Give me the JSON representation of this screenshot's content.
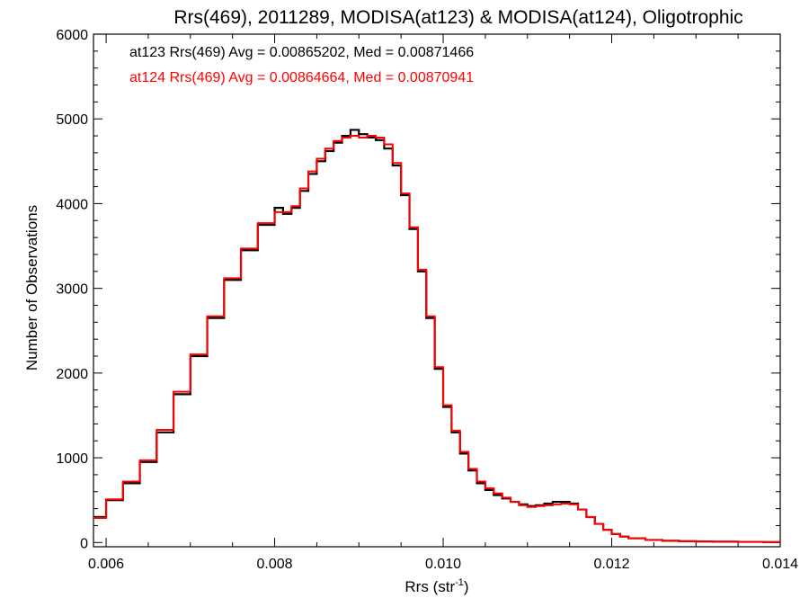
{
  "chart_data": {
    "type": "line",
    "subtype": "step-histogram",
    "title": "Rrs(469), 2011289, MODISA(at123) & MODISA(at124), Oligotrophic",
    "xlabel": "Rrs (str",
    "xlabel_sup": "-1",
    "xlabel_end": ")",
    "ylabel": "Number of Observations",
    "xlim": [
      0.00585,
      0.014
    ],
    "ylim": [
      -50,
      6000
    ],
    "xticks": [
      0.006,
      0.008,
      0.01,
      0.012,
      0.014
    ],
    "xtick_labels": [
      "0.006",
      "0.008",
      "0.010",
      "0.012",
      "0.014"
    ],
    "yticks": [
      0,
      1000,
      2000,
      3000,
      4000,
      5000,
      6000
    ],
    "ytick_labels": [
      "0",
      "1000",
      "2000",
      "3000",
      "4000",
      "5000",
      "6000"
    ],
    "grid": false,
    "legend": [
      {
        "text": "at123 Rrs(469) Avg = 0.00865202, Med = 0.00871466",
        "color": "#000000"
      },
      {
        "text": "at124 Rrs(469) Avg = 0.00864664, Med = 0.00870941",
        "color": "#ff0000"
      }
    ],
    "legend_position": "top-left",
    "series": [
      {
        "color": "#000000",
        "x": [
          0.00585,
          0.006,
          0.0062,
          0.0064,
          0.0066,
          0.0068,
          0.007,
          0.0072,
          0.0074,
          0.0076,
          0.0078,
          0.008,
          0.0081,
          0.0082,
          0.0083,
          0.0084,
          0.0085,
          0.0086,
          0.0087,
          0.0088,
          0.0089,
          0.009,
          0.0091,
          0.0092,
          0.0093,
          0.0094,
          0.0095,
          0.0096,
          0.0097,
          0.0098,
          0.0099,
          0.01,
          0.0101,
          0.0102,
          0.0103,
          0.0104,
          0.0105,
          0.0106,
          0.0107,
          0.0108,
          0.0109,
          0.011,
          0.0111,
          0.0112,
          0.0113,
          0.0114,
          0.0115,
          0.0116,
          0.0117,
          0.0118,
          0.0119,
          0.012,
          0.0121,
          0.0122,
          0.0124,
          0.0126,
          0.0128,
          0.013,
          0.0132,
          0.0135,
          0.0138,
          0.014
        ],
        "y": [
          300,
          500,
          700,
          950,
          1300,
          1750,
          2200,
          2650,
          3100,
          3450,
          3750,
          3950,
          3880,
          3950,
          4150,
          4350,
          4500,
          4620,
          4720,
          4800,
          4870,
          4820,
          4780,
          4750,
          4650,
          4450,
          4100,
          3700,
          3200,
          2650,
          2050,
          1600,
          1300,
          1050,
          850,
          700,
          620,
          560,
          520,
          480,
          450,
          430,
          440,
          460,
          480,
          480,
          460,
          390,
          300,
          220,
          150,
          100,
          70,
          50,
          30,
          20,
          15,
          12,
          10,
          8,
          5,
          5
        ]
      },
      {
        "color": "#ff0000",
        "x": [
          0.00585,
          0.006,
          0.0062,
          0.0064,
          0.0066,
          0.0068,
          0.007,
          0.0072,
          0.0074,
          0.0076,
          0.0078,
          0.008,
          0.0081,
          0.0082,
          0.0083,
          0.0084,
          0.0085,
          0.0086,
          0.0087,
          0.0088,
          0.0089,
          0.009,
          0.0091,
          0.0092,
          0.0093,
          0.0094,
          0.0095,
          0.0096,
          0.0097,
          0.0098,
          0.0099,
          0.01,
          0.0101,
          0.0102,
          0.0103,
          0.0104,
          0.0105,
          0.0106,
          0.0107,
          0.0108,
          0.0109,
          0.011,
          0.0111,
          0.0112,
          0.0113,
          0.0114,
          0.0115,
          0.0116,
          0.0117,
          0.0118,
          0.0119,
          0.012,
          0.0121,
          0.0122,
          0.0124,
          0.0126,
          0.0128,
          0.013,
          0.0132,
          0.0135,
          0.0138,
          0.014
        ],
        "y": [
          290,
          510,
          720,
          970,
          1330,
          1780,
          2220,
          2670,
          3120,
          3470,
          3770,
          3900,
          3900,
          3970,
          4180,
          4380,
          4530,
          4650,
          4740,
          4780,
          4800,
          4780,
          4800,
          4780,
          4700,
          4480,
          4120,
          3720,
          3220,
          2670,
          2070,
          1620,
          1320,
          1070,
          870,
          720,
          640,
          580,
          530,
          480,
          440,
          420,
          430,
          440,
          450,
          460,
          450,
          390,
          300,
          220,
          150,
          100,
          70,
          50,
          30,
          20,
          15,
          12,
          10,
          8,
          5,
          5
        ]
      }
    ]
  }
}
